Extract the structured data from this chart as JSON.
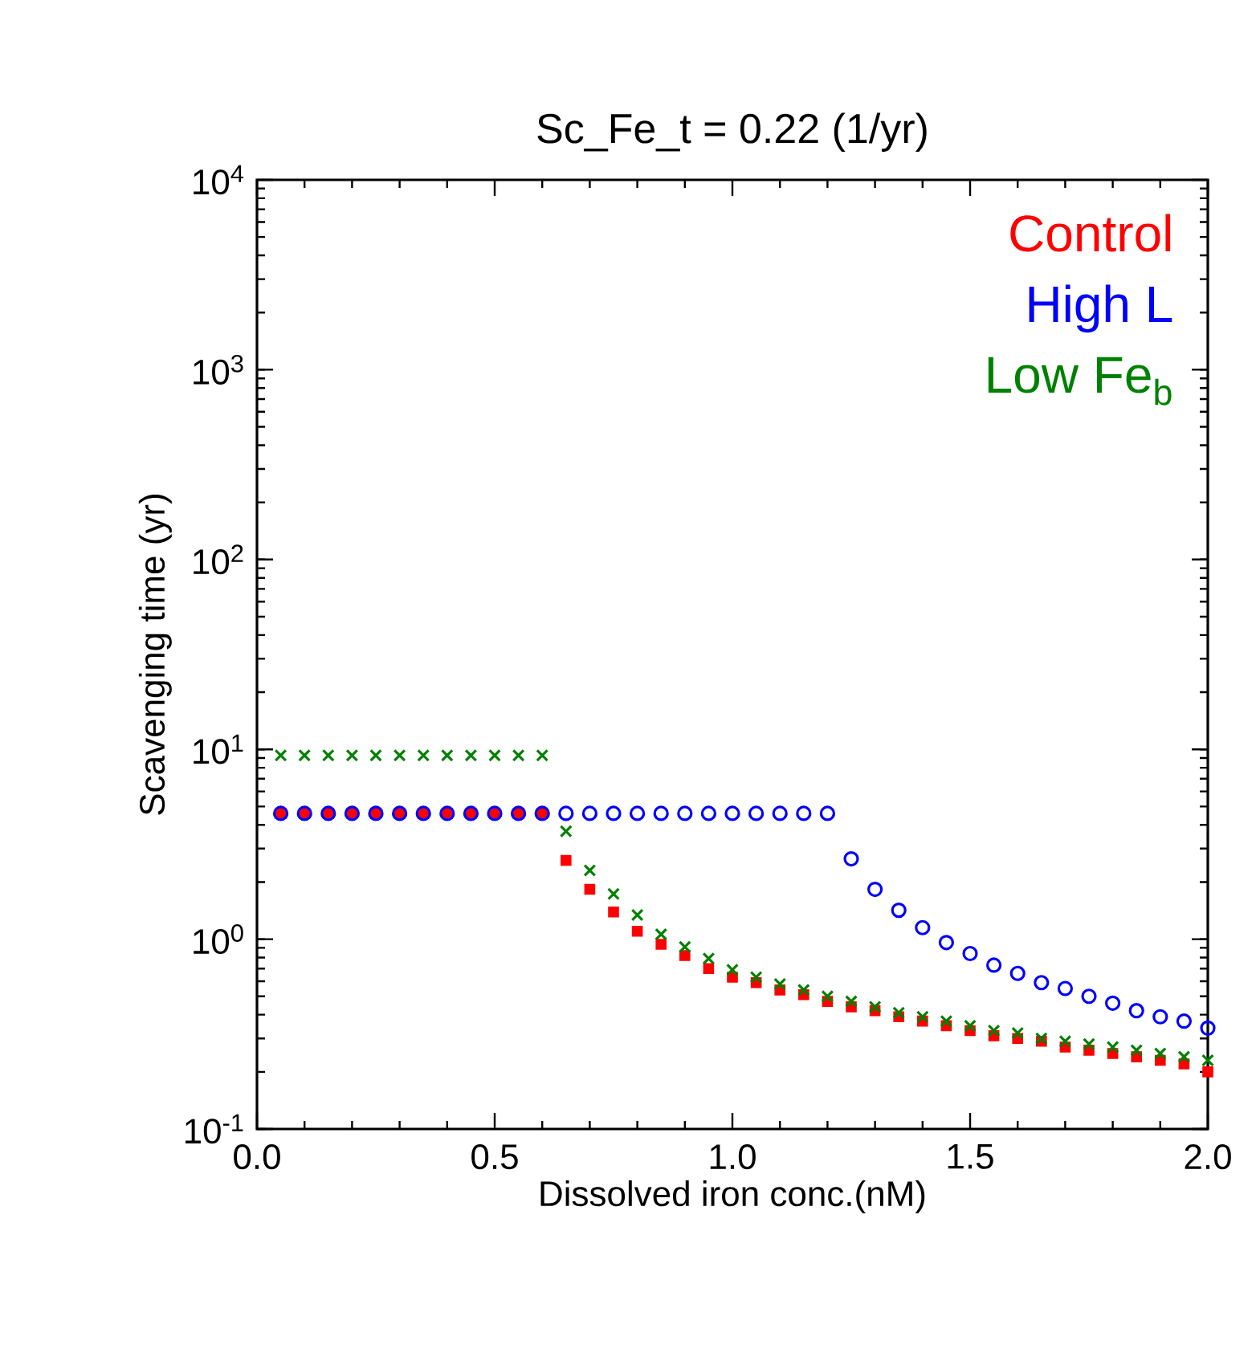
{
  "chart_data": {
    "type": "scatter",
    "title": "Sc_Fe_t = 0.22 (1/yr)",
    "xlabel": "Dissolved iron conc.(nM)",
    "ylabel": "Scavenging time (yr)",
    "x": [
      0.05,
      0.1,
      0.15,
      0.2,
      0.25,
      0.3,
      0.35,
      0.4,
      0.45,
      0.5,
      0.55,
      0.6,
      0.65,
      0.7,
      0.75,
      0.8,
      0.85,
      0.9,
      0.95,
      1.0,
      1.05,
      1.1,
      1.15,
      1.2,
      1.25,
      1.3,
      1.35,
      1.4,
      1.45,
      1.5,
      1.55,
      1.6,
      1.65,
      1.7,
      1.75,
      1.8,
      1.85,
      1.9,
      1.95,
      2.0
    ],
    "series": [
      {
        "name": "Control",
        "color": "#ff0000",
        "marker": "square",
        "values": [
          4.6,
          4.6,
          4.6,
          4.6,
          4.6,
          4.6,
          4.6,
          4.6,
          4.6,
          4.6,
          4.6,
          4.6,
          2.6,
          1.83,
          1.39,
          1.1,
          0.94,
          0.82,
          0.7,
          0.63,
          0.59,
          0.54,
          0.51,
          0.47,
          0.44,
          0.42,
          0.39,
          0.37,
          0.35,
          0.33,
          0.31,
          0.3,
          0.29,
          0.27,
          0.26,
          0.25,
          0.24,
          0.23,
          0.22,
          0.2
        ]
      },
      {
        "name": "High L",
        "color": "#0000ff",
        "marker": "circle",
        "values": [
          4.6,
          4.6,
          4.6,
          4.6,
          4.6,
          4.6,
          4.6,
          4.6,
          4.6,
          4.6,
          4.6,
          4.6,
          4.6,
          4.6,
          4.6,
          4.6,
          4.6,
          4.6,
          4.6,
          4.6,
          4.6,
          4.6,
          4.6,
          4.6,
          2.65,
          1.83,
          1.42,
          1.15,
          0.96,
          0.84,
          0.73,
          0.66,
          0.59,
          0.55,
          0.5,
          0.46,
          0.42,
          0.39,
          0.37,
          0.34
        ]
      },
      {
        "name": "Low Fe$_{b}$",
        "color": "#008000",
        "marker": "cross",
        "values": [
          9.3,
          9.3,
          9.3,
          9.3,
          9.3,
          9.3,
          9.3,
          9.3,
          9.3,
          9.3,
          9.3,
          9.3,
          3.7,
          2.3,
          1.73,
          1.34,
          1.06,
          0.91,
          0.79,
          0.69,
          0.63,
          0.58,
          0.54,
          0.5,
          0.47,
          0.44,
          0.41,
          0.39,
          0.37,
          0.35,
          0.33,
          0.32,
          0.3,
          0.29,
          0.28,
          0.27,
          0.26,
          0.25,
          0.24,
          0.23
        ]
      }
    ],
    "xlim": [
      0,
      2.0
    ],
    "xticks": [
      {
        "value": 0,
        "label": "0.0"
      },
      0.5,
      {
        "value": 1,
        "label": "1.0"
      },
      1.5,
      {
        "value": 2,
        "label": "2.0"
      }
    ],
    "ylim": [
      0.1,
      10000
    ],
    "log": "y",
    "yticks": [
      {
        "value": 0.1,
        "label": "10$^{-1}$"
      },
      {
        "value": 1,
        "label": "10$^{0}$"
      },
      {
        "value": 10,
        "label": "10$^{1}$"
      },
      {
        "value": 100,
        "label": "10$^{2}$"
      },
      {
        "value": 1000,
        "label": "10$^{3}$"
      },
      {
        "value": 10000,
        "label": "10$^{4}$"
      }
    ],
    "legend": "top right",
    "grid": false
  }
}
